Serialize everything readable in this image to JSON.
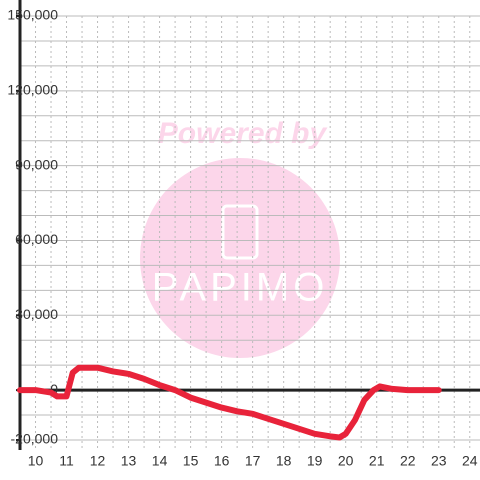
{
  "chart_data": {
    "type": "line",
    "x": [
      9.5,
      10,
      10.5,
      10.7,
      11.0,
      11.2,
      11.4,
      12,
      12.5,
      13,
      13.5,
      14,
      14.5,
      15,
      15.5,
      16,
      16.5,
      17,
      17.5,
      18,
      18.5,
      19,
      19.5,
      19.8,
      20,
      20.3,
      20.6,
      20.9,
      21.1,
      21.5,
      22,
      23
    ],
    "series": [
      {
        "color": "#e8233a",
        "values": [
          0,
          0,
          -1000,
          -2500,
          -2500,
          7000,
          9000,
          9000,
          7500,
          6500,
          4500,
          2000,
          0,
          -3000,
          -5000,
          -7000,
          -8500,
          -9500,
          -11500,
          -13500,
          -15500,
          -17500,
          -18500,
          -19000,
          -17500,
          -12000,
          -4000,
          0,
          1500,
          500,
          0,
          0
        ]
      }
    ],
    "xlim": [
      9.5,
      24.33
    ],
    "xticks": [
      10,
      11,
      12,
      13,
      14,
      15,
      16,
      17,
      18,
      19,
      20,
      21,
      22,
      23,
      24
    ],
    "xminor": [
      10,
      10.5,
      11,
      11.5,
      12,
      12.5,
      13,
      13.5,
      14,
      14.5,
      15,
      15.5,
      16,
      16.5,
      17,
      17.5,
      18,
      18.5,
      19,
      19.5,
      20,
      20.5,
      21,
      21.5,
      22,
      22.5,
      23,
      23.5,
      24
    ],
    "ylim": [
      -20000,
      150000
    ],
    "yticks": [
      {
        "value": -20000,
        "label": "-20,000"
      },
      0,
      {
        "value": 30000,
        "label": "30,000"
      },
      {
        "value": 60000,
        "label": "60,000"
      },
      {
        "value": 90000,
        "label": "90,000"
      },
      {
        "value": 120000,
        "label": "120,000"
      },
      {
        "value": 150000,
        "label": "150,000"
      }
    ],
    "yminor": [
      -20000,
      -10000,
      10000,
      20000,
      30000,
      40000,
      50000,
      60000,
      70000,
      80000,
      90000,
      100000,
      110000,
      120000,
      130000,
      140000,
      150000
    ],
    "grid": true,
    "watermark": {
      "text": "Powered by",
      "logo": "PAPIMO"
    }
  }
}
